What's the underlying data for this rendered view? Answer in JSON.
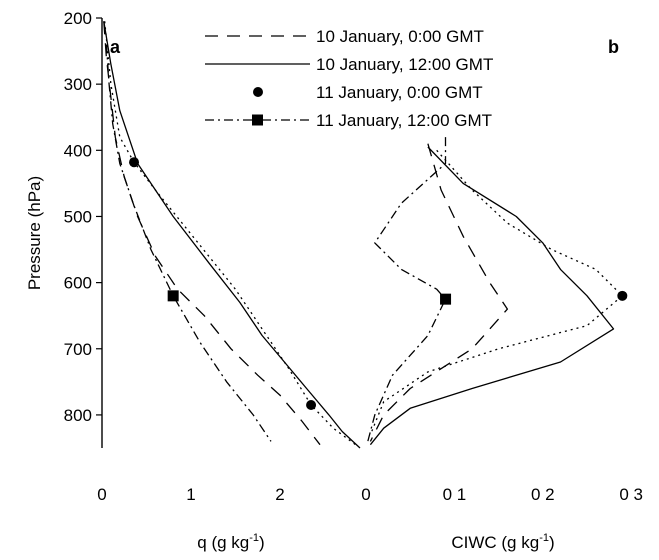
{
  "chart_data": {
    "type": "line",
    "y_axis": {
      "label": "Pressure (hPa)",
      "range": [
        200,
        850
      ],
      "inverted": true,
      "ticks": [
        {
          "value": 200,
          "label": "200"
        },
        {
          "value": 300,
          "label": "300"
        },
        {
          "value": 400,
          "label": "400"
        },
        {
          "value": 500,
          "label": "500"
        },
        {
          "value": 600,
          "label": "600"
        },
        {
          "value": 700,
          "label": "700"
        },
        {
          "value": 800,
          "label": "800"
        }
      ]
    },
    "legend": {
      "placement": "top-right",
      "entries": [
        {
          "name": "10 January, 0:00 GMT",
          "style": "long-dash",
          "marker": "none"
        },
        {
          "name": "10 January, 12:00 GMT",
          "style": "solid",
          "marker": "none"
        },
        {
          "name": "11 January, 0:00 GMT",
          "style": "dotted",
          "marker": "circle"
        },
        {
          "name": "11 January, 12:00 GMT",
          "style": "dash-dot",
          "marker": "square"
        }
      ]
    },
    "panels": [
      {
        "id": "a",
        "panel_label": "a",
        "xlabel_main": "q (g kg",
        "xlabel_exp": "-1",
        "xlabel_end": ")",
        "xlim": [
          0,
          2.9
        ],
        "x_ticks": [
          {
            "value": 0,
            "label": "0"
          },
          {
            "value": 1,
            "label": "1"
          },
          {
            "value": 2,
            "label": "2"
          }
        ],
        "series": [
          {
            "name": "10 January, 0:00 GMT",
            "style": "long-dash",
            "points": [
              [
                0.02,
                205
              ],
              [
                0.05,
                260
              ],
              [
                0.1,
                320
              ],
              [
                0.15,
                380
              ],
              [
                0.25,
                440
              ],
              [
                0.4,
                500
              ],
              [
                0.6,
                560
              ],
              [
                0.85,
                610
              ],
              [
                1.15,
                650
              ],
              [
                1.45,
                700
              ],
              [
                1.75,
                740
              ],
              [
                2.0,
                770
              ],
              [
                2.25,
                810
              ],
              [
                2.45,
                845
              ]
            ]
          },
          {
            "name": "10 January, 12:00 GMT",
            "style": "solid",
            "points": [
              [
                0.02,
                205
              ],
              [
                0.1,
                270
              ],
              [
                0.2,
                340
              ],
              [
                0.4,
                420
              ],
              [
                0.8,
                500
              ],
              [
                1.2,
                570
              ],
              [
                1.55,
                630
              ],
              [
                1.8,
                680
              ],
              [
                2.05,
                720
              ],
              [
                2.3,
                760
              ],
              [
                2.55,
                800
              ],
              [
                2.7,
                825
              ],
              [
                2.9,
                850
              ]
            ]
          },
          {
            "name": "11 January, 0:00 GMT",
            "style": "dotted",
            "points": [
              [
                0.03,
                205
              ],
              [
                0.1,
                300
              ],
              [
                0.2,
                380
              ],
              [
                0.36,
                418
              ],
              [
                0.6,
                460
              ],
              [
                0.9,
                510
              ],
              [
                1.2,
                560
              ],
              [
                1.5,
                610
              ],
              [
                1.8,
                670
              ],
              [
                2.1,
                730
              ],
              [
                2.35,
                785
              ],
              [
                2.6,
                820
              ],
              [
                2.85,
                845
              ]
            ]
          },
          {
            "name": "11 January, 12:00 GMT",
            "style": "dash-dot",
            "points": [
              [
                0.05,
                240
              ],
              [
                0.08,
                300
              ],
              [
                0.12,
                360
              ],
              [
                0.2,
                420
              ],
              [
                0.35,
                480
              ],
              [
                0.55,
                550
              ],
              [
                0.8,
                620
              ],
              [
                1.1,
                690
              ],
              [
                1.4,
                750
              ],
              [
                1.7,
                800
              ],
              [
                1.9,
                840
              ]
            ]
          }
        ],
        "markers": [
          {
            "series": "11 January, 0:00 GMT",
            "shape": "circle",
            "x": 0.36,
            "y": 418
          },
          {
            "series": "11 January, 0:00 GMT",
            "shape": "circle",
            "x": 2.35,
            "y": 785
          },
          {
            "series": "11 January, 12:00 GMT",
            "shape": "square",
            "x": 0.8,
            "y": 620
          }
        ]
      },
      {
        "id": "b",
        "panel_label": "b",
        "xlabel_main": "CIWC (g kg",
        "xlabel_exp": "-1",
        "xlabel_end": ")",
        "xlim": [
          0,
          0.31
        ],
        "x_ticks": [
          {
            "value": 0,
            "label": "0"
          },
          {
            "value": 0.1,
            "label": "0 1"
          },
          {
            "value": 0.2,
            "label": "0 2"
          },
          {
            "value": 0.3,
            "label": "0 3"
          }
        ],
        "series": [
          {
            "name": "10 January, 0:00 GMT",
            "style": "long-dash",
            "points": [
              [
                0.07,
                390
              ],
              [
                0.085,
                460
              ],
              [
                0.11,
                530
              ],
              [
                0.14,
                600
              ],
              [
                0.16,
                640
              ],
              [
                0.12,
                700
              ],
              [
                0.05,
                760
              ],
              [
                0.02,
                800
              ],
              [
                0.005,
                840
              ]
            ]
          },
          {
            "name": "10 January, 12:00 GMT",
            "style": "solid",
            "points": [
              [
                0.07,
                395
              ],
              [
                0.11,
                450
              ],
              [
                0.17,
                500
              ],
              [
                0.2,
                540
              ],
              [
                0.22,
                580
              ],
              [
                0.25,
                620
              ],
              [
                0.28,
                670
              ],
              [
                0.22,
                720
              ],
              [
                0.12,
                760
              ],
              [
                0.05,
                790
              ],
              [
                0.02,
                820
              ],
              [
                0.005,
                845
              ]
            ]
          },
          {
            "name": "11 January, 0:00 GMT",
            "style": "dotted",
            "points": [
              [
                0.08,
                400
              ],
              [
                0.12,
                460
              ],
              [
                0.16,
                510
              ],
              [
                0.21,
                550
              ],
              [
                0.26,
                580
              ],
              [
                0.29,
                620
              ],
              [
                0.25,
                665
              ],
              [
                0.15,
                700
              ],
              [
                0.07,
                735
              ],
              [
                0.02,
                780
              ],
              [
                0.005,
                830
              ]
            ]
          },
          {
            "name": "11 January, 12:00 GMT",
            "style": "dash-dot",
            "points": [
              [
                0.09,
                380
              ],
              [
                0.09,
                420
              ],
              [
                0.04,
                480
              ],
              [
                0.01,
                540
              ],
              [
                0.04,
                580
              ],
              [
                0.08,
                610
              ],
              [
                0.09,
                625
              ],
              [
                0.07,
                680
              ],
              [
                0.03,
                740
              ],
              [
                0.01,
                800
              ],
              [
                0.002,
                840
              ]
            ]
          }
        ],
        "markers": [
          {
            "series": "11 January, 0:00 GMT",
            "shape": "circle",
            "x": 0.29,
            "y": 620
          },
          {
            "series": "11 January, 12:00 GMT",
            "shape": "square",
            "x": 0.09,
            "y": 625
          }
        ]
      }
    ]
  }
}
